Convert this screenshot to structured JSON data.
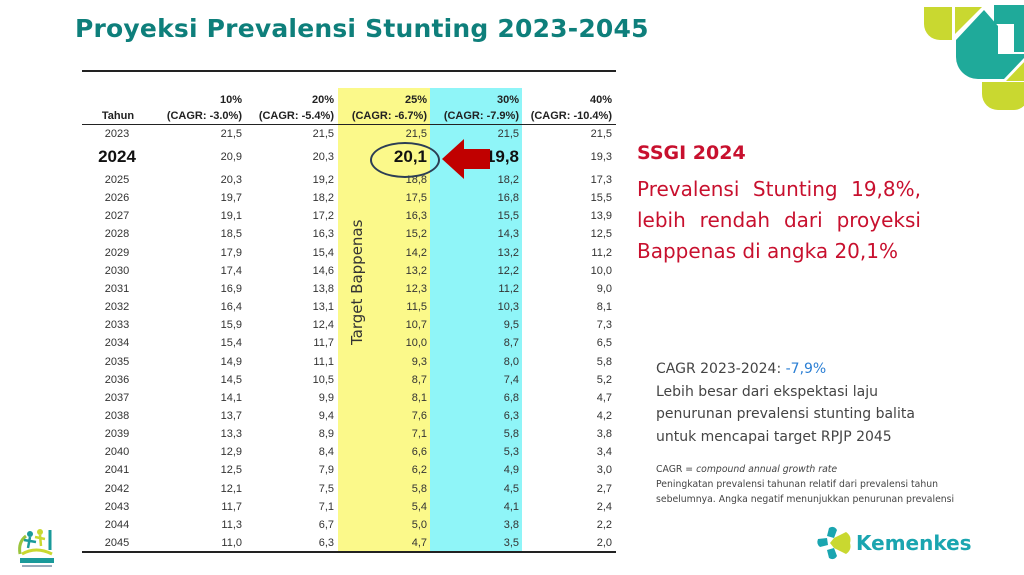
{
  "title": "Proyeksi Prevalensi Stunting 2023-2045",
  "table": {
    "year_header": "Tahun",
    "columns": [
      {
        "pct": "10%",
        "cagr": "(CAGR: -3.0%)"
      },
      {
        "pct": "20%",
        "cagr": "(CAGR: -5.4%)"
      },
      {
        "pct": "25%",
        "cagr": "(CAGR: -6.7%)"
      },
      {
        "pct": "30%",
        "cagr": "(CAGR: -7.9%)"
      },
      {
        "pct": "40%",
        "cagr": "(CAGR: -10.4%)"
      }
    ],
    "highlight_colors": {
      "25%": "#fbf98a",
      "30%": "#8ff5f8"
    },
    "rows": [
      {
        "year": "2023",
        "values": [
          "21,5",
          "21,5",
          "21,5",
          "21,5",
          "21,5"
        ]
      },
      {
        "year": "2024",
        "values": [
          "20,9",
          "20,3",
          "20,1",
          "19,8",
          "19,3"
        ]
      },
      {
        "year": "2025",
        "values": [
          "20,3",
          "19,2",
          "18,8",
          "18,2",
          "17,3"
        ]
      },
      {
        "year": "2026",
        "values": [
          "19,7",
          "18,2",
          "17,5",
          "16,8",
          "15,5"
        ]
      },
      {
        "year": "2027",
        "values": [
          "19,1",
          "17,2",
          "16,3",
          "15,5",
          "13,9"
        ]
      },
      {
        "year": "2028",
        "values": [
          "18,5",
          "16,3",
          "15,2",
          "14,3",
          "12,5"
        ]
      },
      {
        "year": "2029",
        "values": [
          "17,9",
          "15,4",
          "14,2",
          "13,2",
          "11,2"
        ]
      },
      {
        "year": "2030",
        "values": [
          "17,4",
          "14,6",
          "13,2",
          "12,2",
          "10,0"
        ]
      },
      {
        "year": "2031",
        "values": [
          "16,9",
          "13,8",
          "12,3",
          "11,2",
          "9,0"
        ]
      },
      {
        "year": "2032",
        "values": [
          "16,4",
          "13,1",
          "11,5",
          "10,3",
          "8,1"
        ]
      },
      {
        "year": "2033",
        "values": [
          "15,9",
          "12,4",
          "10,7",
          "9,5",
          "7,3"
        ]
      },
      {
        "year": "2034",
        "values": [
          "15,4",
          "11,7",
          "10,0",
          "8,7",
          "6,5"
        ]
      },
      {
        "year": "2035",
        "values": [
          "14,9",
          "11,1",
          "9,3",
          "8,0",
          "5,8"
        ]
      },
      {
        "year": "2036",
        "values": [
          "14,5",
          "10,5",
          "8,7",
          "7,4",
          "5,2"
        ]
      },
      {
        "year": "2037",
        "values": [
          "14,1",
          "9,9",
          "8,1",
          "6,8",
          "4,7"
        ]
      },
      {
        "year": "2038",
        "values": [
          "13,7",
          "9,4",
          "7,6",
          "6,3",
          "4,2"
        ]
      },
      {
        "year": "2039",
        "values": [
          "13,3",
          "8,9",
          "7,1",
          "5,8",
          "3,8"
        ]
      },
      {
        "year": "2040",
        "values": [
          "12,9",
          "8,4",
          "6,6",
          "5,3",
          "3,4"
        ]
      },
      {
        "year": "2041",
        "values": [
          "12,5",
          "7,9",
          "6,2",
          "4,9",
          "3,0"
        ]
      },
      {
        "year": "2042",
        "values": [
          "12,1",
          "7,5",
          "5,8",
          "4,5",
          "2,7"
        ]
      },
      {
        "year": "2043",
        "values": [
          "11,7",
          "7,1",
          "5,4",
          "4,1",
          "2,4"
        ]
      },
      {
        "year": "2044",
        "values": [
          "11,3",
          "6,7",
          "5,0",
          "3,8",
          "2,2"
        ]
      },
      {
        "year": "2045",
        "values": [
          "11,0",
          "6,3",
          "4,7",
          "3,5",
          "2,0"
        ]
      }
    ],
    "highlight_year": "2024",
    "target_label": "Target Bappenas",
    "arrow_color": "#c00000"
  },
  "callout": {
    "badge": "SSGI 2024",
    "text": "Prevalensi Stunting 19,8%, lebih rendah dari proyeksi Bappenas di angka 20,1%",
    "color": "#c8102e"
  },
  "cagr_box": {
    "label": "CAGR 2023-2024: ",
    "value": "-7,9%",
    "text": "Lebih besar dari ekspektasi laju penurunan prevalensi stunting balita untuk mencapai target RPJP 2045"
  },
  "note": {
    "abbr": "CAGR = ",
    "definition": "compound annual growth rate",
    "text": "Peningkatan prevalensi tahunan relatif dari prevalensi tahun sebelumnya. Angka negatif menunjukkan penurunan prevalensi"
  },
  "logos": {
    "ssgi": "SSGI 2024",
    "kemenkes": "Kemenkes"
  }
}
